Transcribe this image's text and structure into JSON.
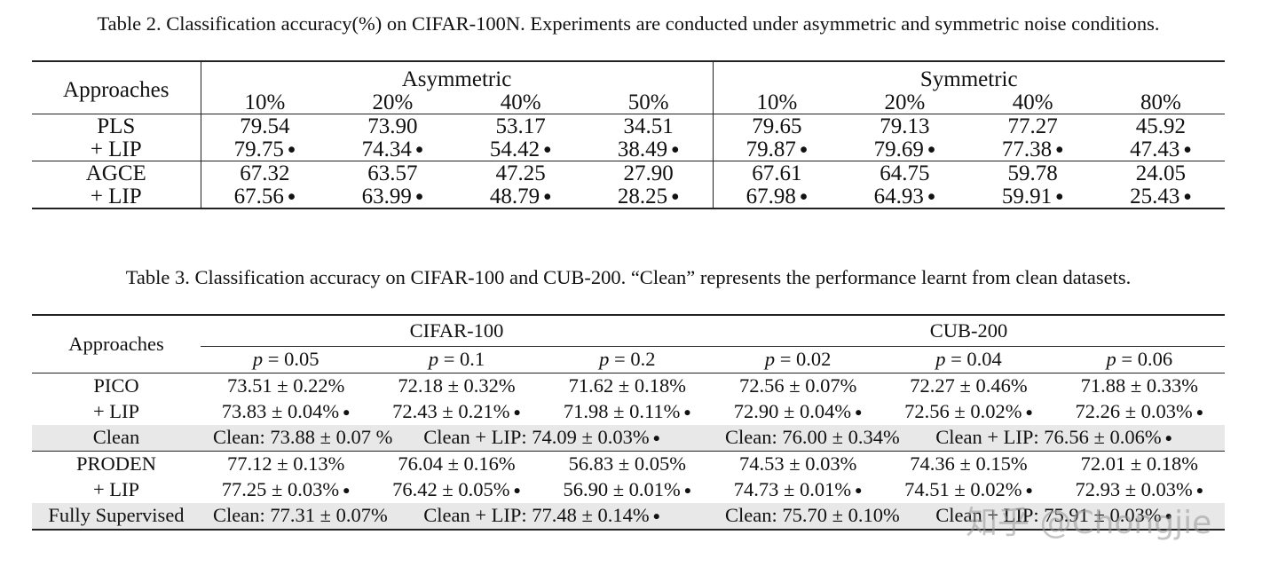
{
  "table2": {
    "caption": "Table 2. Classification accuracy(%) on CIFAR-100N. Experiments are conducted under asymmetric and symmetric noise conditions.",
    "approaches_label": "Approaches",
    "group_asym": "Asymmetric",
    "group_sym": "Symmetric",
    "asym_cols": [
      "10%",
      "20%",
      "40%",
      "50%"
    ],
    "sym_cols": [
      "10%",
      "20%",
      "40%",
      "80%"
    ],
    "rows": [
      {
        "name": "PLS",
        "values": [
          "79.54",
          "73.90",
          "53.17",
          "34.51",
          "79.65",
          "79.13",
          "77.27",
          "45.92"
        ],
        "dots": false
      },
      {
        "name": "+ LIP",
        "values": [
          "79.75",
          "74.34",
          "54.42",
          "38.49",
          "79.87",
          "79.69",
          "77.38",
          "47.43"
        ],
        "dots": true
      },
      {
        "name": "AGCE",
        "values": [
          "67.32",
          "63.57",
          "47.25",
          "27.90",
          "67.61",
          "64.75",
          "59.78",
          "24.05"
        ],
        "dots": false
      },
      {
        "name": "+ LIP",
        "values": [
          "67.56",
          "63.99",
          "48.79",
          "28.25",
          "67.98",
          "64.93",
          "59.91",
          "25.43"
        ],
        "dots": true
      }
    ]
  },
  "table3": {
    "caption": "Table 3. Classification accuracy on CIFAR-100 and CUB-200. “Clean” represents the performance learnt from clean datasets.",
    "approaches_label": "Approaches",
    "group_cifar": "CIFAR-100",
    "group_cub": "CUB-200",
    "p_var": "p",
    "p_values": [
      "= 0.05",
      "= 0.1",
      "= 0.2",
      "= 0.02",
      "= 0.04",
      "= 0.06"
    ],
    "rows": [
      {
        "name": "PICO",
        "values": [
          "73.51 ± 0.22%",
          "72.18 ± 0.32%",
          "71.62 ± 0.18%",
          "72.56 ± 0.07%",
          "72.27 ± 0.46%",
          "71.88 ± 0.33%"
        ],
        "dots": false
      },
      {
        "name": "+ LIP",
        "values": [
          "73.83 ± 0.04%",
          "72.43 ± 0.21%",
          "71.98 ± 0.11%",
          "72.90 ± 0.04%",
          "72.56 ± 0.02%",
          "72.26 ± 0.03%"
        ],
        "dots": true
      },
      {
        "name": "PRODEN",
        "values": [
          "77.12 ± 0.13%",
          "76.04 ± 0.16%",
          "56.83 ± 0.05%",
          "74.53 ± 0.03%",
          "74.36 ± 0.15%",
          "72.01 ± 0.18%"
        ],
        "dots": false
      },
      {
        "name": "+ LIP",
        "values": [
          "77.25 ± 0.03%",
          "76.42 ± 0.05%",
          "56.90 ± 0.01%",
          "74.73 ± 0.01%",
          "74.51 ± 0.02%",
          "72.93 ± 0.03%"
        ],
        "dots": true
      }
    ],
    "clean_row": {
      "name": "Clean",
      "cifar_clean": "Clean: 73.88 ± 0.07 %",
      "cifar_lip": "Clean + LIP: 74.09 ± 0.03%",
      "cub_clean": "Clean: 76.00 ± 0.34%",
      "cub_lip": "Clean + LIP: 76.56 ± 0.06%"
    },
    "supervised_row": {
      "name": "Fully Supervised",
      "cifar_clean": "Clean: 77.31 ± 0.07%",
      "cifar_lip": "Clean + LIP: 77.48 ± 0.14%",
      "cub_clean": "Clean: 75.70 ± 0.10%",
      "cub_lip": "Clean + LIP: 75.91 ± 0.03%"
    }
  },
  "marker_symbol": "●",
  "watermark": "知乎 @Chongjie"
}
